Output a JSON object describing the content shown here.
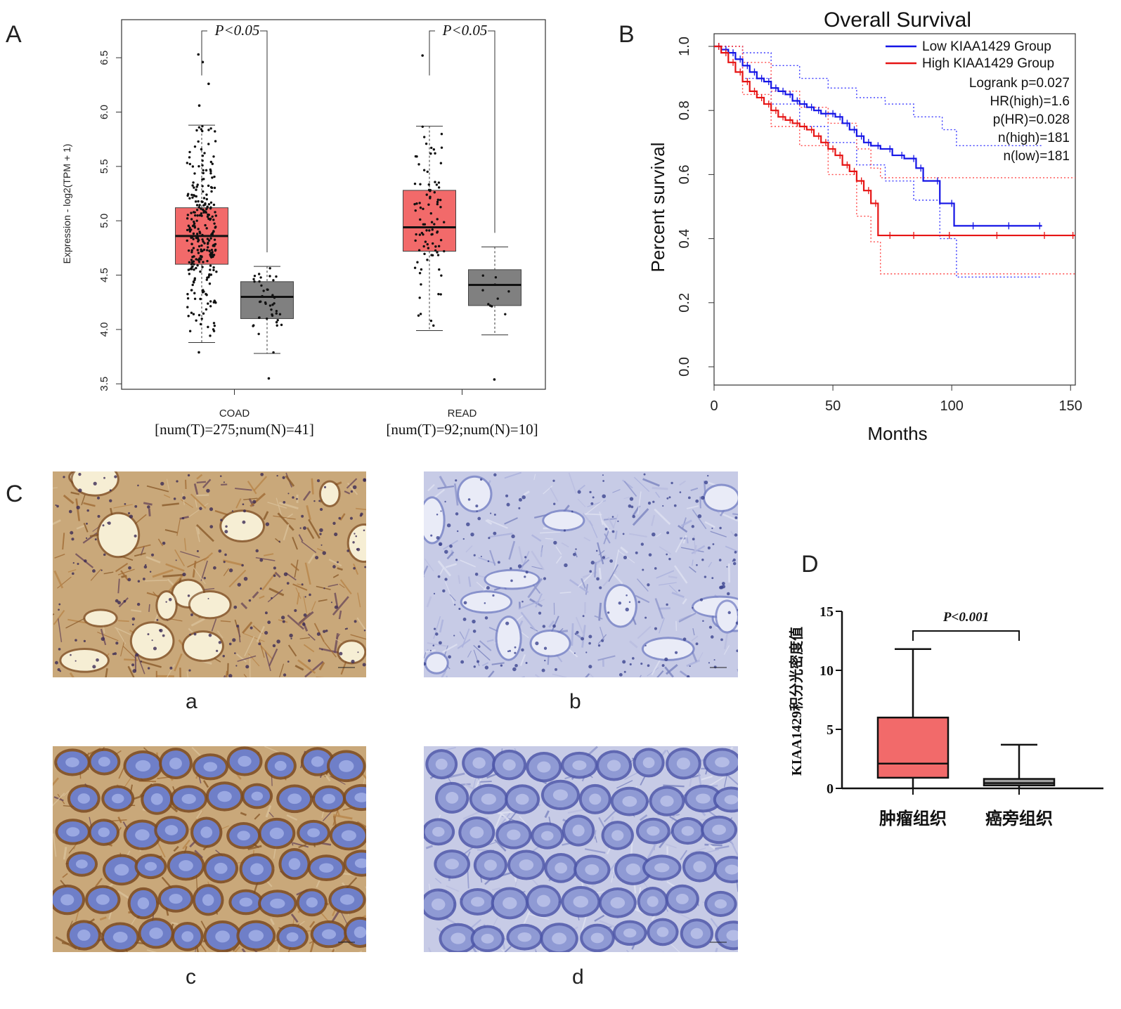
{
  "panels": {
    "A": "A",
    "B": "B",
    "C": "C",
    "D": "D"
  },
  "chart_data": [
    {
      "id": "A",
      "type": "box",
      "ylabel": "Expression - log2(TPM + 1)",
      "yticks": [
        "3.5",
        "4.0",
        "4.5",
        "5.0",
        "5.5",
        "6.0",
        "6.5"
      ],
      "ylim": [
        3.45,
        6.85
      ],
      "groups": [
        {
          "name": "COAD",
          "sub": "[num(T)=275;num(N)=41]",
          "pval": "P<0.05",
          "tumor": {
            "whislo": 3.88,
            "q1": 4.6,
            "med": 4.86,
            "q3": 5.12,
            "whishi": 5.88,
            "outliers": [
              6.06,
              6.26,
              6.46,
              6.53,
              3.79
            ],
            "n": 275
          },
          "normal": {
            "whislo": 3.78,
            "q1": 4.1,
            "med": 4.3,
            "q3": 4.44,
            "whishi": 4.58,
            "outliers": [
              3.55
            ],
            "n": 41
          }
        },
        {
          "name": "READ",
          "sub": "[num(T)=92;num(N)=10]",
          "pval": "P<0.05",
          "tumor": {
            "whislo": 3.99,
            "q1": 4.72,
            "med": 4.94,
            "q3": 5.28,
            "whishi": 5.87,
            "outliers": [
              6.52
            ],
            "n": 92
          },
          "normal": {
            "whislo": 3.95,
            "q1": 4.22,
            "med": 4.41,
            "q3": 4.55,
            "whishi": 4.76,
            "outliers": [
              3.54
            ],
            "n": 10
          }
        }
      ],
      "colors": {
        "tumor": "#f26a6a",
        "normal": "#808080"
      }
    },
    {
      "id": "B",
      "type": "line",
      "title": "Overall Survival",
      "xlabel": "Months",
      "ylabel": "Percent survival",
      "xticks": [
        "0",
        "50",
        "100",
        "150"
      ],
      "yticks": [
        "0.0",
        "0.2",
        "0.4",
        "0.6",
        "0.8",
        "1.0"
      ],
      "xlim": [
        0,
        152
      ],
      "ylim": [
        0,
        1
      ],
      "legend": [
        "Low KIAA1429 Group",
        "High KIAA1429 Group"
      ],
      "stats": [
        "Logrank p=0.027",
        "HR(high)=1.6",
        "p(HR)=0.028",
        "n(high)=181",
        "n(low)=181"
      ],
      "series": [
        {
          "name": "Low KIAA1429 Group",
          "color": "#1414e6",
          "x": [
            0,
            3,
            6,
            9,
            12,
            15,
            18,
            21,
            24,
            27,
            30,
            33,
            36,
            39,
            42,
            45,
            48,
            51,
            54,
            57,
            60,
            63,
            66,
            70,
            75,
            80,
            85,
            88,
            95,
            101,
            110,
            125,
            138
          ],
          "y": [
            1.0,
            0.99,
            0.98,
            0.96,
            0.94,
            0.92,
            0.9,
            0.89,
            0.87,
            0.86,
            0.85,
            0.83,
            0.82,
            0.81,
            0.8,
            0.79,
            0.79,
            0.78,
            0.76,
            0.74,
            0.72,
            0.7,
            0.69,
            0.68,
            0.66,
            0.65,
            0.62,
            0.58,
            0.51,
            0.44,
            0.44,
            0.44,
            0.44
          ]
        },
        {
          "name": "High KIAA1429 Group",
          "color": "#e61414",
          "x": [
            0,
            3,
            6,
            9,
            12,
            15,
            18,
            21,
            24,
            27,
            30,
            33,
            36,
            39,
            42,
            45,
            48,
            51,
            54,
            57,
            60,
            63,
            66,
            69,
            75,
            85,
            100,
            120,
            140,
            152
          ],
          "y": [
            1.0,
            0.98,
            0.95,
            0.92,
            0.89,
            0.86,
            0.84,
            0.82,
            0.8,
            0.78,
            0.77,
            0.76,
            0.75,
            0.74,
            0.72,
            0.7,
            0.68,
            0.66,
            0.63,
            0.61,
            0.58,
            0.55,
            0.51,
            0.41,
            0.41,
            0.41,
            0.41,
            0.41,
            0.41,
            0.41
          ]
        }
      ],
      "ci": [
        {
          "color": "#3a3aff",
          "upper": {
            "x": [
              0,
              12,
              24,
              36,
              48,
              60,
              72,
              84,
              96,
              102,
              120,
              138
            ],
            "y": [
              1.0,
              0.98,
              0.94,
              0.9,
              0.87,
              0.84,
              0.82,
              0.78,
              0.74,
              0.69,
              0.69,
              0.69
            ]
          },
          "lower": {
            "x": [
              0,
              12,
              24,
              36,
              48,
              60,
              72,
              84,
              95,
              102,
              120,
              138
            ],
            "y": [
              1.0,
              0.9,
              0.82,
              0.75,
              0.7,
              0.63,
              0.58,
              0.52,
              0.4,
              0.28,
              0.28,
              0.28
            ]
          }
        },
        {
          "color": "#ff4a4a",
          "upper": {
            "x": [
              0,
              12,
              24,
              36,
              48,
              60,
              66,
              70,
              100,
              152
            ],
            "y": [
              1.0,
              0.95,
              0.86,
              0.81,
              0.76,
              0.68,
              0.62,
              0.59,
              0.59,
              0.59
            ]
          },
          "lower": {
            "x": [
              0,
              12,
              24,
              36,
              48,
              60,
              66,
              70,
              100,
              152
            ],
            "y": [
              1.0,
              0.85,
              0.75,
              0.69,
              0.6,
              0.47,
              0.39,
              0.29,
              0.29,
              0.29
            ]
          }
        }
      ]
    },
    {
      "id": "D",
      "type": "box",
      "ylabel": "KIAA1429积分光密度值",
      "yticks": [
        "0",
        "5",
        "10",
        "15"
      ],
      "ylim": [
        0,
        15
      ],
      "pval": "P<0.001",
      "categories": [
        "肿瘤组织",
        "癌旁组织"
      ],
      "boxes": [
        {
          "whislo": 0,
          "q1": 0.9,
          "med": 2.1,
          "q3": 6.0,
          "whishi": 11.8,
          "color": "#f26a6a"
        },
        {
          "whislo": 0,
          "q1": 0.25,
          "med": 0.45,
          "q3": 0.8,
          "whishi": 3.7,
          "color": "#a0a0a0"
        }
      ]
    }
  ],
  "micro_labels": [
    "a",
    "b",
    "c",
    "d"
  ]
}
